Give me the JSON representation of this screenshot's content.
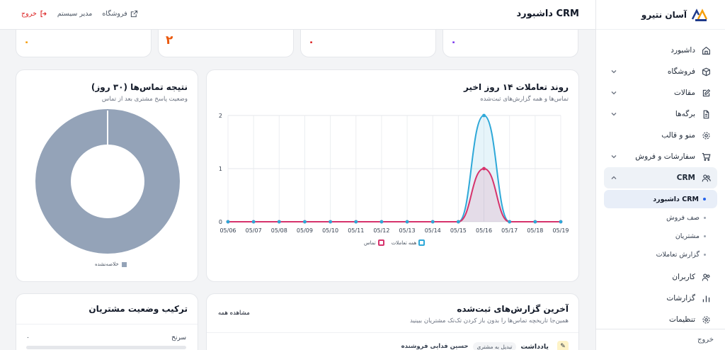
{
  "brand": {
    "name": "آسان نتیرو",
    "logo_text": "AN"
  },
  "topbar": {
    "title": "داشبورد CRM",
    "store_label": "فروشگاه",
    "admin_label": "مدیر سیستم",
    "logout_label": "خروج"
  },
  "sidebar": {
    "items": [
      {
        "label": "داشبورد",
        "icon": "home-icon"
      },
      {
        "label": "فروشگاه",
        "icon": "box-icon",
        "expandable": true
      },
      {
        "label": "مقالات",
        "icon": "edit-icon",
        "expandable": true
      },
      {
        "label": "برگه‌ها",
        "icon": "file-icon",
        "expandable": true
      },
      {
        "label": "منو و قالب",
        "icon": "gear-icon"
      },
      {
        "label": "سفارشات و فروش",
        "icon": "cart-icon",
        "expandable": true
      },
      {
        "label": "CRM",
        "icon": "users-icon",
        "expandable": true,
        "expanded": true
      }
    ],
    "crm_sub": [
      {
        "label": "داشبورد CRM",
        "active": true
      },
      {
        "label": "صف فروش"
      },
      {
        "label": "مشتریان"
      },
      {
        "label": "گزارش تعاملات"
      }
    ],
    "items_after": [
      {
        "label": "کاربران",
        "icon": "user-group-icon"
      },
      {
        "label": "گزارشات",
        "icon": "chart-bar-icon"
      },
      {
        "label": "تنظیمات",
        "icon": "settings-icon"
      }
    ],
    "logout_label": "خروج"
  },
  "stats": [
    {
      "value": "۰",
      "color": "#7c3aed"
    },
    {
      "value": "۰",
      "color": "#dc2626"
    },
    {
      "value": "۲",
      "color": "#ea580c"
    },
    {
      "value": "۰",
      "color": "#f59e0b"
    }
  ],
  "trend_card": {
    "title": "روند تعاملات ۱۴ روز اخیر",
    "subtitle": "تماس‌ها و همه گزارش‌های ثبت‌شده"
  },
  "donut_card": {
    "title": "نتیجه تماس‌ها (۳۰ روز)",
    "subtitle": "وضعیت پاسخ مشتری بعد از تماس",
    "legend": "خلاصه‌نشده",
    "color": "#94a3b8"
  },
  "reports_card": {
    "title": "آخرین گزارش‌های ثبت‌شده",
    "subtitle": "همین‌جا تاریخچه تماس‌ها را بدون باز کردن تک‌تک مشتریان ببینید",
    "view_all": "مشاهده همه",
    "rows": [
      {
        "type": "یادداشت",
        "badge": "تبدیل به مشتری",
        "author": "حسین فدایی فروشنده"
      }
    ]
  },
  "status_card": {
    "title": "ترکیب وضعیت مشتریان",
    "rows": [
      {
        "label": "سرنخ",
        "value": "۰",
        "fraction": 0
      }
    ]
  },
  "chart_data": {
    "type": "line",
    "categories": [
      "05/06",
      "05/07",
      "05/08",
      "05/09",
      "05/10",
      "05/11",
      "05/12",
      "05/13",
      "05/14",
      "05/15",
      "05/16",
      "05/17",
      "05/18",
      "05/19"
    ],
    "series": [
      {
        "name": "همه تعاملات",
        "color": "#2ea8d8",
        "values": [
          0,
          0,
          0,
          0,
          0,
          0,
          0,
          0,
          0,
          0,
          2,
          0,
          0,
          0
        ]
      },
      {
        "name": "تماس",
        "color": "#d6336c",
        "values": [
          0,
          0,
          0,
          0,
          0,
          0,
          0,
          0,
          0,
          0,
          1,
          0,
          0,
          0
        ]
      }
    ],
    "yticks": [
      "0",
      "1",
      "2"
    ],
    "ylim": [
      0,
      2
    ],
    "grid": true,
    "legend_position": "bottom"
  }
}
